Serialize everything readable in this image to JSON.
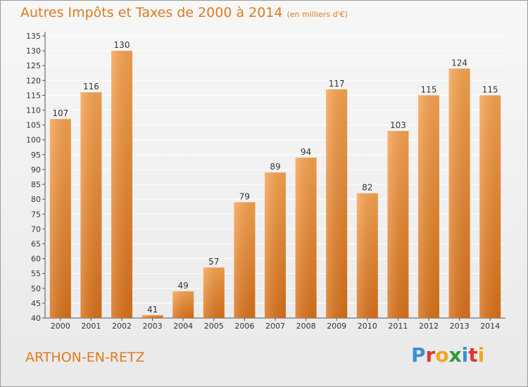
{
  "header": {
    "title": "Autres Impôts et Taxes de 2000 à 2014",
    "unit": "(en milliers d'€)"
  },
  "footer": {
    "commune": "ARTHON-EN-RETZ",
    "logo_letters": [
      "P",
      "r",
      "o",
      "x",
      "i",
      "t",
      "i"
    ],
    "logo_colors": [
      "#3a8fd6",
      "#e8342a",
      "#f2a81d",
      "#2f9a3b",
      "#3a8fd6",
      "#e8342a",
      "#f2a81d"
    ]
  },
  "colors": {
    "accent": "#e07a1f",
    "bar_light": "#f7a350",
    "bar_dark": "#d8711a",
    "grid": "#ffffff",
    "axis_text": "#333333"
  },
  "chart_data": {
    "type": "bar",
    "categories": [
      "2000",
      "2001",
      "2002",
      "2003",
      "2004",
      "2005",
      "2006",
      "2007",
      "2008",
      "2009",
      "2010",
      "2011",
      "2012",
      "2013",
      "2014"
    ],
    "values": [
      107,
      116,
      130,
      41,
      49,
      57,
      79,
      89,
      94,
      117,
      82,
      103,
      115,
      124,
      115
    ],
    "ylim": [
      40,
      135
    ],
    "yticks": [
      40,
      45,
      50,
      55,
      60,
      65,
      70,
      75,
      80,
      85,
      90,
      95,
      100,
      105,
      110,
      115,
      120,
      125,
      130,
      135
    ],
    "grid": true,
    "legend": "none",
    "data_labels": true
  }
}
